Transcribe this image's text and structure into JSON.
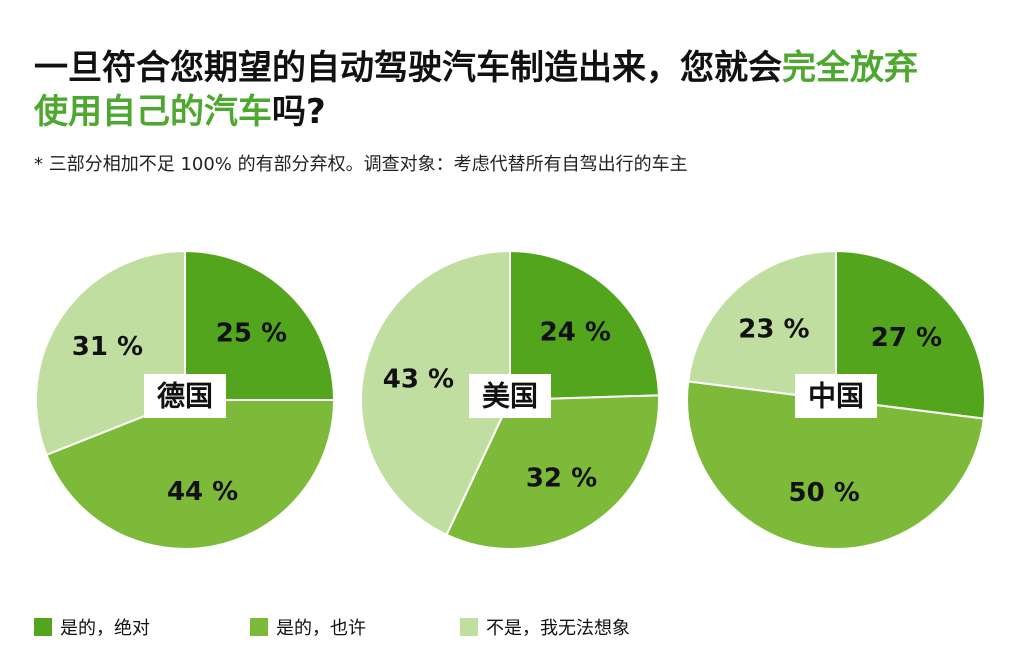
{
  "title": {
    "part1": "一旦符合您期望的自动驾驶汽车制造出来，您就会",
    "part2": "完全放弃",
    "part3": "使用自己的汽车",
    "part4": "吗?"
  },
  "subtitle": "* 三部分相加不足 100% 的有部分弃权。调查对象：考虑代替所有自驾出行的车主",
  "colors": {
    "accent": "#4ea72e",
    "yes_definitely": "#54a51e",
    "yes_maybe": "#7dba3a",
    "no": "#c1dea1"
  },
  "chart_data": {
    "type": "pie",
    "series_labels": [
      "是的，绝对",
      "是的，也许",
      "不是，我无法想象"
    ],
    "charts": [
      {
        "name": "德国",
        "values": [
          25,
          44,
          31
        ],
        "labels": [
          "25 %",
          "44 %",
          "31 %"
        ]
      },
      {
        "name": "美国",
        "values": [
          24,
          32,
          43
        ],
        "labels": [
          "24 %",
          "32 %",
          "43 %"
        ]
      },
      {
        "name": "中国",
        "values": [
          27,
          50,
          23
        ],
        "labels": [
          "27 %",
          "50 %",
          "23 %"
        ]
      }
    ]
  }
}
